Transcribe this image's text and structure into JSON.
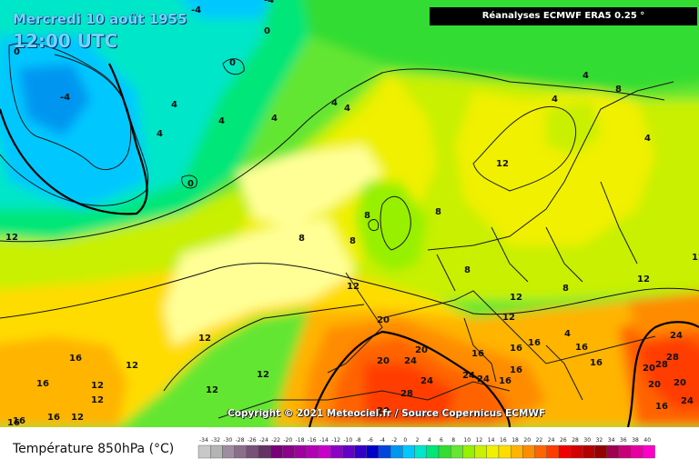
{
  "header": {
    "date": "Mercredi 10 août 1955",
    "time": "12:00 UTC",
    "source": "Réanalyses ECMWF ERA5 0.25 °"
  },
  "footer": {
    "copyright": "Copyright © 2021 Meteociel.fr / Source Copernicus ECMWF"
  },
  "legend": {
    "title": "Température 850hPa (°C)",
    "scale_values": [
      -34,
      -32,
      -30,
      -28,
      -26,
      -24,
      -22,
      -20,
      -18,
      -16,
      -14,
      -12,
      -10,
      -8,
      -6,
      -4,
      -2,
      0,
      2,
      4,
      6,
      8,
      10,
      12,
      14,
      16,
      18,
      20,
      22,
      24,
      26,
      28,
      30,
      32,
      34,
      36,
      38,
      40
    ],
    "colors": [
      "#c8c8c8",
      "#b4b4b4",
      "#a08ca0",
      "#8c6e8c",
      "#785078",
      "#643264",
      "#780078",
      "#8c008c",
      "#a000a0",
      "#b400b4",
      "#c800c8",
      "#8c00c8",
      "#6400c8",
      "#3200c8",
      "#0000c8",
      "#0046dc",
      "#0096f0",
      "#00c8ff",
      "#00e6c8",
      "#00e678",
      "#32dc32",
      "#64e632",
      "#96f000",
      "#c8f000",
      "#f0f000",
      "#ffdc00",
      "#ffb400",
      "#ff8c00",
      "#ff6400",
      "#ff3c00",
      "#f00000",
      "#d20000",
      "#b40000",
      "#960000",
      "#a00050",
      "#c80078",
      "#e600a0",
      "#ff00c8"
    ]
  },
  "labels": [
    {
      "text": "-4"
    },
    {
      "text": "-4"
    },
    {
      "text": "0"
    },
    {
      "text": "0"
    },
    {
      "text": "4"
    },
    {
      "text": "4"
    },
    {
      "text": "-4"
    },
    {
      "text": "0"
    },
    {
      "text": "4"
    },
    {
      "text": "4"
    },
    {
      "text": "0"
    },
    {
      "text": "4"
    },
    {
      "text": "4"
    },
    {
      "text": "8"
    },
    {
      "text": "4"
    },
    {
      "text": "4"
    },
    {
      "text": "8"
    },
    {
      "text": "4"
    },
    {
      "text": "12"
    },
    {
      "text": "8"
    },
    {
      "text": "8"
    },
    {
      "text": "8"
    },
    {
      "text": "8"
    },
    {
      "text": "12"
    },
    {
      "text": "12"
    },
    {
      "text": "12"
    },
    {
      "text": "8"
    },
    {
      "text": "12"
    },
    {
      "text": "12"
    },
    {
      "text": "12"
    },
    {
      "text": "12"
    },
    {
      "text": "20"
    },
    {
      "text": "20"
    },
    {
      "text": "24"
    },
    {
      "text": "20"
    },
    {
      "text": "24"
    },
    {
      "text": "24"
    },
    {
      "text": "24"
    },
    {
      "text": "28"
    },
    {
      "text": "16"
    },
    {
      "text": "16"
    },
    {
      "text": "16"
    },
    {
      "text": "16"
    },
    {
      "text": "16"
    },
    {
      "text": "16"
    },
    {
      "text": "12"
    },
    {
      "text": "12"
    },
    {
      "text": "12"
    },
    {
      "text": "12"
    },
    {
      "text": "16"
    },
    {
      "text": "16"
    },
    {
      "text": "16"
    },
    {
      "text": "20"
    },
    {
      "text": "28"
    },
    {
      "text": "28"
    },
    {
      "text": "24"
    },
    {
      "text": "20"
    },
    {
      "text": "20"
    },
    {
      "text": "24"
    },
    {
      "text": "20"
    },
    {
      "text": "16"
    },
    {
      "text": "16"
    },
    {
      "text": "16"
    },
    {
      "text": "4"
    },
    {
      "text": "12"
    },
    {
      "text": "16"
    },
    {
      "text": "12"
    }
  ]
}
